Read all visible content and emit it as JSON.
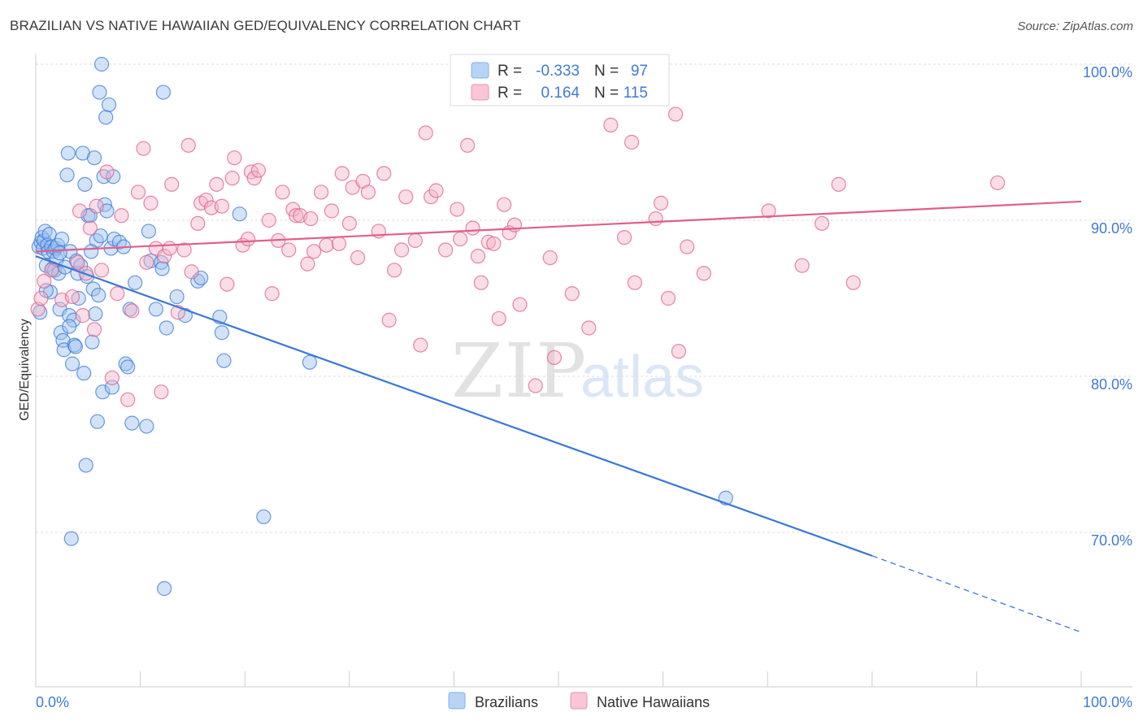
{
  "title": "BRAZILIAN VS NATIVE HAWAIIAN GED/EQUIVALENCY CORRELATION CHART",
  "source": "Source: ZipAtlas.com",
  "watermark": {
    "zip": "ZIP",
    "atlas": "atlas"
  },
  "legend": {
    "r_label": "R =",
    "n_label": "N =",
    "rows": [
      {
        "series": "Brazilians",
        "r": "-0.333",
        "n": "97",
        "color": "#7fb0ec",
        "fill": "#b9d3f5"
      },
      {
        "series": "Native Hawaiians",
        "r": "0.164",
        "n": "115",
        "color": "#ee8fad",
        "fill": "#f8c6d6"
      }
    ]
  },
  "chart_data": {
    "type": "scatter",
    "title": "BRAZILIAN VS NATIVE HAWAIIAN GED/EQUIVALENCY CORRELATION CHART",
    "xlabel": "",
    "ylabel": "GED/Equivalency",
    "xlim": [
      0,
      100
    ],
    "ylim": [
      60,
      100
    ],
    "x_tick_labels": [
      "0.0%",
      "100.0%"
    ],
    "y_ticks": [
      70,
      80,
      90,
      100
    ],
    "y_tick_labels": [
      "70.0%",
      "80.0%",
      "90.0%",
      "100.0%"
    ],
    "series": [
      {
        "name": "Brazilians",
        "color": "#3b78d8",
        "fill": "#9cc2f0",
        "trend": {
          "x0": 0,
          "y0": 87.7,
          "x1": 80,
          "y1": 68.5,
          "dashed_to_x": 100,
          "dashed_to_y": 63.6
        },
        "points": [
          [
            0.3,
            88.3
          ],
          [
            0.5,
            88.6
          ],
          [
            0.6,
            88.9
          ],
          [
            0.7,
            88.2
          ],
          [
            0.8,
            88.7
          ],
          [
            0.9,
            89.3
          ],
          [
            1.0,
            87.1
          ],
          [
            1.1,
            88.4
          ],
          [
            1.2,
            88.0
          ],
          [
            1.3,
            89.1
          ],
          [
            1.4,
            85.4
          ],
          [
            1.5,
            88.3
          ],
          [
            1.6,
            86.9
          ],
          [
            1.7,
            88.0
          ],
          [
            1.8,
            86.8
          ],
          [
            1.9,
            88.2
          ],
          [
            2.0,
            87.5
          ],
          [
            2.1,
            88.4
          ],
          [
            2.2,
            86.6
          ],
          [
            2.3,
            84.3
          ],
          [
            2.4,
            82.8
          ],
          [
            2.5,
            88.8
          ],
          [
            2.6,
            82.3
          ],
          [
            2.7,
            81.7
          ],
          [
            2.8,
            87.0
          ],
          [
            3.0,
            92.9
          ],
          [
            3.1,
            94.3
          ],
          [
            3.2,
            83.9
          ],
          [
            3.3,
            88.0
          ],
          [
            3.4,
            69.6
          ],
          [
            3.5,
            80.8
          ],
          [
            3.6,
            83.6
          ],
          [
            3.7,
            82.0
          ],
          [
            3.8,
            81.9
          ],
          [
            3.9,
            87.4
          ],
          [
            4.0,
            86.6
          ],
          [
            4.1,
            85.0
          ],
          [
            4.3,
            87.1
          ],
          [
            4.5,
            94.3
          ],
          [
            4.6,
            80.2
          ],
          [
            4.7,
            92.3
          ],
          [
            4.8,
            74.3
          ],
          [
            4.9,
            86.4
          ],
          [
            5.0,
            90.3
          ],
          [
            5.2,
            90.3
          ],
          [
            5.4,
            82.2
          ],
          [
            5.5,
            85.6
          ],
          [
            5.6,
            94.0
          ],
          [
            5.7,
            84.0
          ],
          [
            5.8,
            88.7
          ],
          [
            5.9,
            77.1
          ],
          [
            6.0,
            85.2
          ],
          [
            6.1,
            98.2
          ],
          [
            6.2,
            89.0
          ],
          [
            6.3,
            100.0
          ],
          [
            6.4,
            79.0
          ],
          [
            6.5,
            92.8
          ],
          [
            6.6,
            91.0
          ],
          [
            6.7,
            96.6
          ],
          [
            6.8,
            90.6
          ],
          [
            7.0,
            97.4
          ],
          [
            7.2,
            88.2
          ],
          [
            7.3,
            79.3
          ],
          [
            7.4,
            92.8
          ],
          [
            7.5,
            88.8
          ],
          [
            8.0,
            88.6
          ],
          [
            8.4,
            88.3
          ],
          [
            8.6,
            80.8
          ],
          [
            8.8,
            80.6
          ],
          [
            9.0,
            84.3
          ],
          [
            9.2,
            77.0
          ],
          [
            9.5,
            86.0
          ],
          [
            10.6,
            76.8
          ],
          [
            10.8,
            89.3
          ],
          [
            11.0,
            87.4
          ],
          [
            11.5,
            84.3
          ],
          [
            12.0,
            87.3
          ],
          [
            12.1,
            86.9
          ],
          [
            12.2,
            98.2
          ],
          [
            12.3,
            66.4
          ],
          [
            12.5,
            83.1
          ],
          [
            13.5,
            85.1
          ],
          [
            14.3,
            83.9
          ],
          [
            15.5,
            86.1
          ],
          [
            15.8,
            86.3
          ],
          [
            17.6,
            83.8
          ],
          [
            17.8,
            82.8
          ],
          [
            18.0,
            81.0
          ],
          [
            19.5,
            90.4
          ],
          [
            21.8,
            71.0
          ],
          [
            26.2,
            80.9
          ],
          [
            66.0,
            72.2
          ],
          [
            0.4,
            84.1
          ],
          [
            1.0,
            85.5
          ],
          [
            2.3,
            87.9
          ],
          [
            3.2,
            83.2
          ],
          [
            5.3,
            88.0
          ]
        ]
      },
      {
        "name": "Native Hawaiians",
        "color": "#e05f8a",
        "fill": "#f4b3c8",
        "trend": {
          "x0": 0,
          "y0": 88.0,
          "x1": 100,
          "y1": 91.2
        },
        "points": [
          [
            0.2,
            84.3
          ],
          [
            0.5,
            85.0
          ],
          [
            0.8,
            86.1
          ],
          [
            1.5,
            86.8
          ],
          [
            2.5,
            84.9
          ],
          [
            3.5,
            85.1
          ],
          [
            4.0,
            87.3
          ],
          [
            4.2,
            90.6
          ],
          [
            4.5,
            83.9
          ],
          [
            4.8,
            86.6
          ],
          [
            5.2,
            89.5
          ],
          [
            5.6,
            83.0
          ],
          [
            5.8,
            90.9
          ],
          [
            6.3,
            86.8
          ],
          [
            6.8,
            93.1
          ],
          [
            7.3,
            79.9
          ],
          [
            7.8,
            85.3
          ],
          [
            8.2,
            90.3
          ],
          [
            8.8,
            78.5
          ],
          [
            9.2,
            84.2
          ],
          [
            9.8,
            91.8
          ],
          [
            10.3,
            94.6
          ],
          [
            10.6,
            87.3
          ],
          [
            11.0,
            91.1
          ],
          [
            11.5,
            88.2
          ],
          [
            12.0,
            79.0
          ],
          [
            12.3,
            87.7
          ],
          [
            12.8,
            88.2
          ],
          [
            13.0,
            92.3
          ],
          [
            13.6,
            84.1
          ],
          [
            14.2,
            88.1
          ],
          [
            14.6,
            94.8
          ],
          [
            14.9,
            86.7
          ],
          [
            15.5,
            89.8
          ],
          [
            15.8,
            91.1
          ],
          [
            16.3,
            91.3
          ],
          [
            16.8,
            90.8
          ],
          [
            17.3,
            92.3
          ],
          [
            17.8,
            90.9
          ],
          [
            18.3,
            85.9
          ],
          [
            18.8,
            92.7
          ],
          [
            19.0,
            94.0
          ],
          [
            19.8,
            88.4
          ],
          [
            20.3,
            88.8
          ],
          [
            20.6,
            93.1
          ],
          [
            20.9,
            92.7
          ],
          [
            21.3,
            93.2
          ],
          [
            22.3,
            90.0
          ],
          [
            22.6,
            85.3
          ],
          [
            23.2,
            88.7
          ],
          [
            23.6,
            91.8
          ],
          [
            24.2,
            88.1
          ],
          [
            24.6,
            90.7
          ],
          [
            24.9,
            90.3
          ],
          [
            25.3,
            90.3
          ],
          [
            26.0,
            87.2
          ],
          [
            26.3,
            90.1
          ],
          [
            26.6,
            88.0
          ],
          [
            27.3,
            91.8
          ],
          [
            27.8,
            88.4
          ],
          [
            28.3,
            90.6
          ],
          [
            29.0,
            88.5
          ],
          [
            29.3,
            93.0
          ],
          [
            30.0,
            89.8
          ],
          [
            30.3,
            92.1
          ],
          [
            30.8,
            87.6
          ],
          [
            31.3,
            92.5
          ],
          [
            31.8,
            91.8
          ],
          [
            32.8,
            89.3
          ],
          [
            33.3,
            93.0
          ],
          [
            33.8,
            83.6
          ],
          [
            34.3,
            86.8
          ],
          [
            35.0,
            88.1
          ],
          [
            35.4,
            91.5
          ],
          [
            36.3,
            88.7
          ],
          [
            36.8,
            82.0
          ],
          [
            37.3,
            95.6
          ],
          [
            37.8,
            91.5
          ],
          [
            38.3,
            91.9
          ],
          [
            39.2,
            88.1
          ],
          [
            40.3,
            90.7
          ],
          [
            40.6,
            88.8
          ],
          [
            41.3,
            94.8
          ],
          [
            41.8,
            89.5
          ],
          [
            42.3,
            87.7
          ],
          [
            42.6,
            86.0
          ],
          [
            43.3,
            88.6
          ],
          [
            43.8,
            88.5
          ],
          [
            44.3,
            83.7
          ],
          [
            44.8,
            91.0
          ],
          [
            45.3,
            89.2
          ],
          [
            45.8,
            89.7
          ],
          [
            46.3,
            84.6
          ],
          [
            47.8,
            79.4
          ],
          [
            49.2,
            87.6
          ],
          [
            49.6,
            81.2
          ],
          [
            51.3,
            85.3
          ],
          [
            52.9,
            83.1
          ],
          [
            55.0,
            96.1
          ],
          [
            56.3,
            88.9
          ],
          [
            57.0,
            95.0
          ],
          [
            57.3,
            86.0
          ],
          [
            59.3,
            90.1
          ],
          [
            59.8,
            91.1
          ],
          [
            60.5,
            85.0
          ],
          [
            61.2,
            96.8
          ],
          [
            61.5,
            81.6
          ],
          [
            62.3,
            88.3
          ],
          [
            63.9,
            86.6
          ],
          [
            70.1,
            90.6
          ],
          [
            73.3,
            87.1
          ],
          [
            75.2,
            89.8
          ],
          [
            76.8,
            92.3
          ],
          [
            78.2,
            86.0
          ],
          [
            92.0,
            92.4
          ]
        ]
      }
    ]
  },
  "bottom_legend": [
    {
      "label": "Brazilians",
      "swatch_fill": "#b9d3f5",
      "swatch_stroke": "#7fb0ec"
    },
    {
      "label": "Native Hawaiians",
      "swatch_fill": "#f8c6d6",
      "swatch_stroke": "#ee8fad"
    }
  ]
}
